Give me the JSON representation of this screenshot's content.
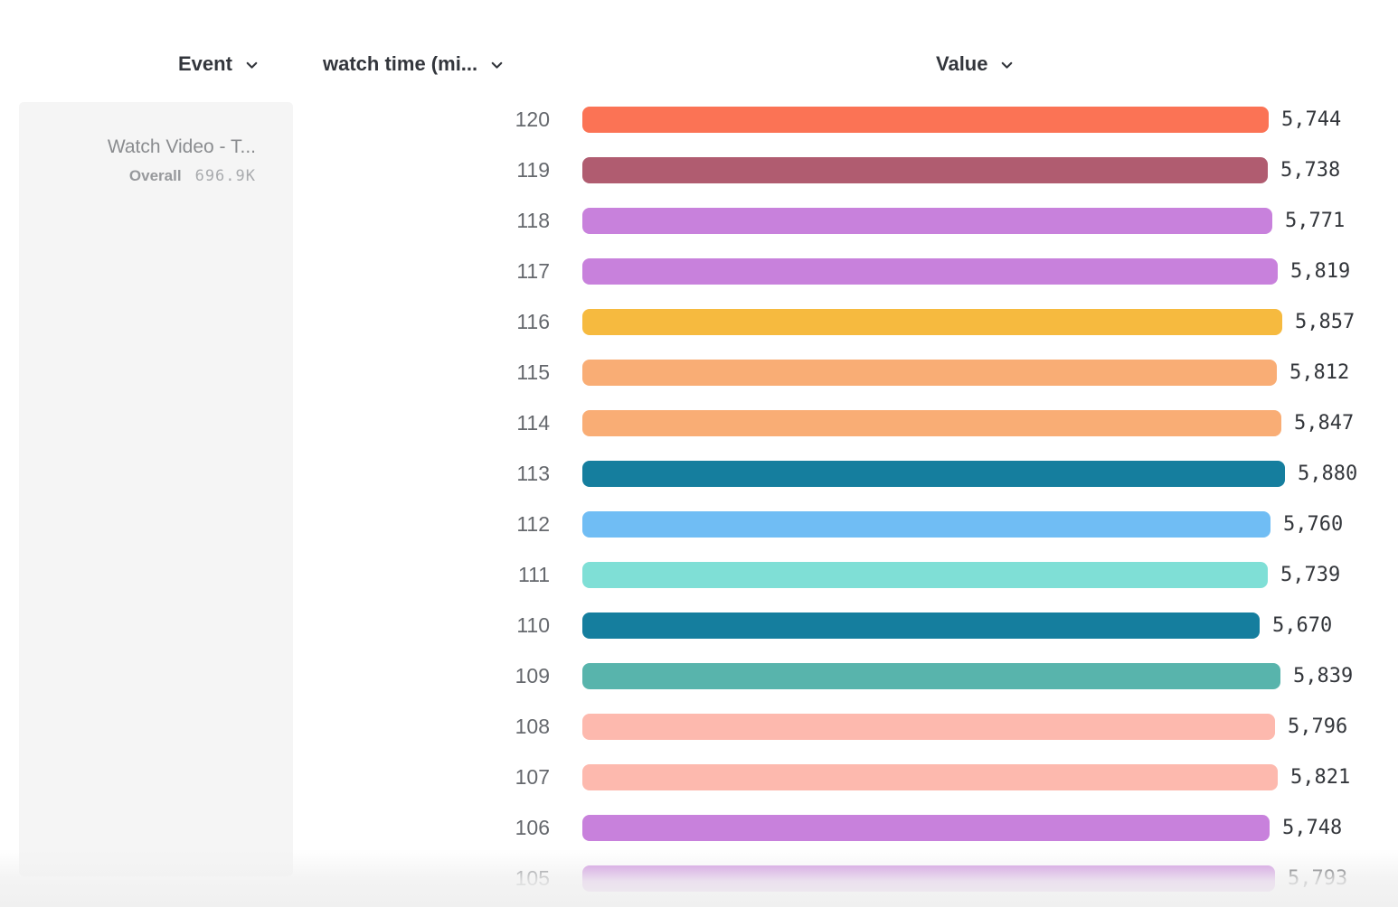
{
  "header": {
    "columns": [
      {
        "id": "event",
        "label": "Event"
      },
      {
        "id": "watch_time",
        "label": "watch time (mi..."
      },
      {
        "id": "value",
        "label": "Value"
      }
    ]
  },
  "sidebar": {
    "event_name": "Watch Video - T...",
    "overall_label": "Overall",
    "overall_value": "696.9K"
  },
  "chart_data": {
    "type": "bar",
    "orientation": "horizontal",
    "series_name": "watch time (mi...",
    "categories": [
      "120",
      "119",
      "118",
      "117",
      "116",
      "115",
      "114",
      "113",
      "112",
      "111",
      "110",
      "109",
      "108",
      "107",
      "106",
      "105"
    ],
    "values": [
      5744,
      5738,
      5771,
      5819,
      5857,
      5812,
      5847,
      5880,
      5760,
      5739,
      5670,
      5839,
      5796,
      5821,
      5748,
      5793
    ],
    "value_labels": [
      "5,744",
      "5,738",
      "5,771",
      "5,819",
      "5,857",
      "5,812",
      "5,847",
      "5,880",
      "5,760",
      "5,739",
      "5,670",
      "5,839",
      "5,796",
      "5,821",
      "5,748",
      "5,793"
    ],
    "colors": [
      "#FB7355",
      "#B05C70",
      "#C881DC",
      "#C881DC",
      "#F6BA3F",
      "#F9AD75",
      "#F9AD75",
      "#157E9E",
      "#70BDF4",
      "#7FDFD6",
      "#157E9E",
      "#58B4AC",
      "#FDB9AE",
      "#FDB9AE",
      "#C881DC",
      "#C881DC"
    ],
    "xlim": [
      0,
      5880
    ],
    "grid": false,
    "legend": false
  },
  "colors": {
    "header_text": "#33363C",
    "row_label_text": "#65686D",
    "value_text": "#33363B",
    "card_bg": "#F5F5F5"
  }
}
